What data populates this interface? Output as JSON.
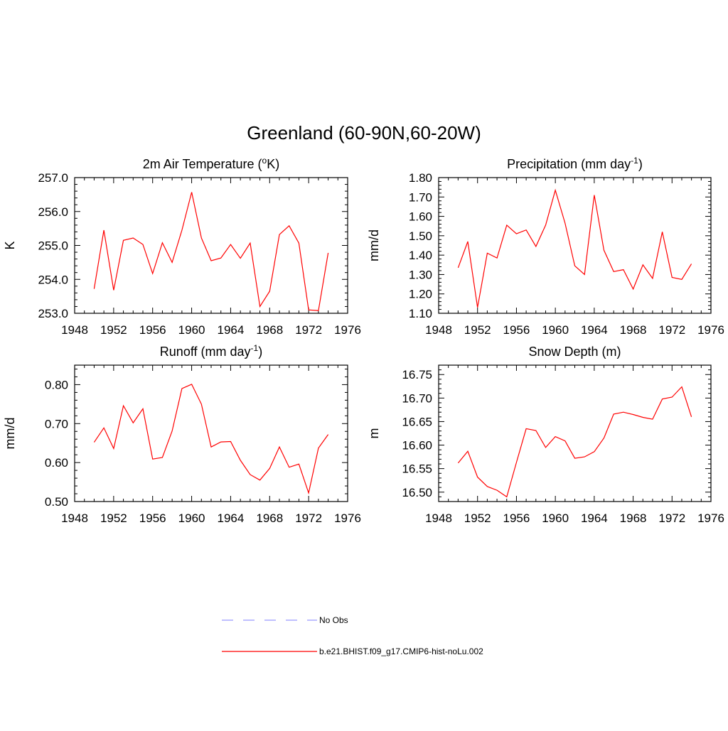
{
  "figure": {
    "title": "Greenland (60-90N,60-20W)"
  },
  "legend": [
    {
      "label": "No Obs",
      "color": "#9999ff",
      "style": "dashed"
    },
    {
      "label": "b.e21.BHIST.f09_g17.CMIP6-hist-noLu.002",
      "color": "#ff0000",
      "style": "solid"
    }
  ],
  "chart_data": [
    {
      "type": "line",
      "title_main": "2m Air Temperature (",
      "title_sup": "o",
      "title_tail": "K)",
      "ylabel": "K",
      "xlim": [
        1948,
        1976
      ],
      "xticks": [
        1948,
        1952,
        1956,
        1960,
        1964,
        1968,
        1972,
        1976
      ],
      "ylim": [
        253.0,
        257.0
      ],
      "yticks": [
        "253.0",
        "254.0",
        "255.0",
        "256.0",
        "257.0"
      ],
      "x": [
        1950,
        1951,
        1952,
        1953,
        1954,
        1955,
        1956,
        1957,
        1958,
        1959,
        1960,
        1961,
        1962,
        1963,
        1964,
        1965,
        1966,
        1967,
        1968,
        1969,
        1970,
        1971,
        1972,
        1973,
        1974
      ],
      "series": [
        {
          "color": "#ff0000",
          "values": [
            253.72,
            255.45,
            253.68,
            255.15,
            255.22,
            255.03,
            254.17,
            255.08,
            254.5,
            255.45,
            256.57,
            255.22,
            254.55,
            254.63,
            255.03,
            254.62,
            255.07,
            253.2,
            253.65,
            255.32,
            255.58,
            255.07,
            253.1,
            253.08,
            254.78
          ]
        }
      ]
    },
    {
      "type": "line",
      "title_main": "Precipitation (mm day",
      "title_sup": "-1",
      "title_tail": ")",
      "ylabel": "mm/d",
      "xlim": [
        1948,
        1976
      ],
      "xticks": [
        1948,
        1952,
        1956,
        1960,
        1964,
        1968,
        1972,
        1976
      ],
      "ylim": [
        1.1,
        1.8
      ],
      "yticks": [
        "1.10",
        "1.20",
        "1.30",
        "1.40",
        "1.50",
        "1.60",
        "1.70",
        "1.80"
      ],
      "x": [
        1950,
        1951,
        1952,
        1953,
        1954,
        1955,
        1956,
        1957,
        1958,
        1959,
        1960,
        1961,
        1962,
        1963,
        1964,
        1965,
        1966,
        1967,
        1968,
        1969,
        1970,
        1971,
        1972,
        1973,
        1974
      ],
      "series": [
        {
          "color": "#ff0000",
          "values": [
            1.335,
            1.47,
            1.13,
            1.41,
            1.385,
            1.555,
            1.51,
            1.53,
            1.445,
            1.555,
            1.735,
            1.565,
            1.345,
            1.3,
            1.71,
            1.425,
            1.315,
            1.325,
            1.225,
            1.35,
            1.28,
            1.52,
            1.285,
            1.275,
            1.355
          ]
        }
      ]
    },
    {
      "type": "line",
      "title_main": "Runoff (mm day",
      "title_sup": "-1",
      "title_tail": ")",
      "ylabel": "mm/d",
      "xlim": [
        1948,
        1976
      ],
      "xticks": [
        1948,
        1952,
        1956,
        1960,
        1964,
        1968,
        1972,
        1976
      ],
      "ylim": [
        0.5,
        0.85
      ],
      "yticks": [
        "0.50",
        "0.60",
        "0.70",
        "0.80"
      ],
      "x": [
        1950,
        1951,
        1952,
        1953,
        1954,
        1955,
        1956,
        1957,
        1958,
        1959,
        1960,
        1961,
        1962,
        1963,
        1964,
        1965,
        1966,
        1967,
        1968,
        1969,
        1970,
        1971,
        1972,
        1973,
        1974
      ],
      "series": [
        {
          "color": "#ff0000",
          "values": [
            0.652,
            0.689,
            0.636,
            0.746,
            0.702,
            0.738,
            0.609,
            0.613,
            0.681,
            0.79,
            0.801,
            0.75,
            0.64,
            0.653,
            0.654,
            0.606,
            0.569,
            0.555,
            0.585,
            0.64,
            0.588,
            0.596,
            0.522,
            0.637,
            0.672
          ]
        }
      ]
    },
    {
      "type": "line",
      "title_main": "Snow Depth (m)",
      "title_sup": "",
      "title_tail": "",
      "ylabel": "m",
      "xlim": [
        1948,
        1976
      ],
      "xticks": [
        1948,
        1952,
        1956,
        1960,
        1964,
        1968,
        1972,
        1976
      ],
      "ylim": [
        16.48,
        16.77
      ],
      "yticks": [
        "16.50",
        "16.55",
        "16.60",
        "16.65",
        "16.70",
        "16.75"
      ],
      "x": [
        1950,
        1951,
        1952,
        1953,
        1954,
        1955,
        1956,
        1957,
        1958,
        1959,
        1960,
        1961,
        1962,
        1963,
        1964,
        1965,
        1966,
        1967,
        1968,
        1969,
        1970,
        1971,
        1972,
        1973,
        1974
      ],
      "series": [
        {
          "color": "#ff0000",
          "values": [
            16.562,
            16.587,
            16.532,
            16.512,
            16.504,
            16.49,
            16.563,
            16.635,
            16.631,
            16.595,
            16.618,
            16.609,
            16.572,
            16.575,
            16.586,
            16.615,
            16.666,
            16.67,
            16.665,
            16.659,
            16.655,
            16.698,
            16.702,
            16.724,
            16.66
          ]
        }
      ]
    }
  ]
}
